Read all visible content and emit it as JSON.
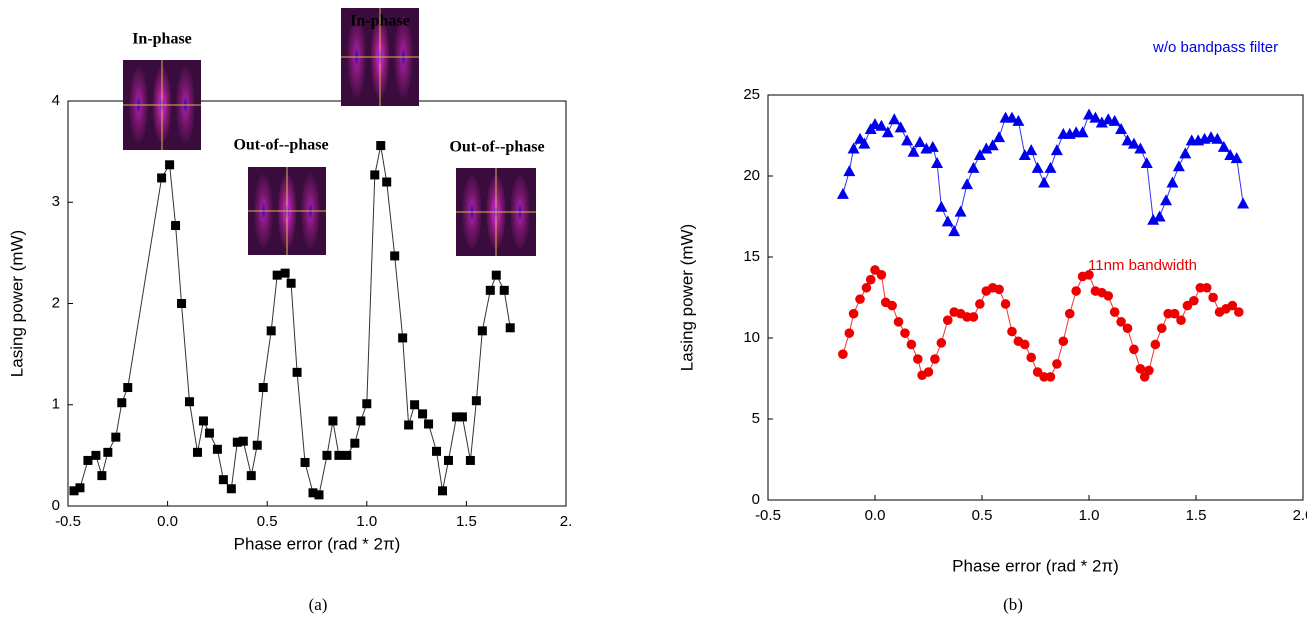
{
  "chart_data": [
    {
      "type": "scatter-line",
      "caption": "(a)",
      "xlabel": "Phase error (rad * 2π)",
      "ylabel": "Lasing power (mW)",
      "color": "#000000",
      "annotations": [
        "In-phase",
        "Out-of--phase",
        "In-phase",
        "Out-of--phase"
      ],
      "xlim": [
        -0.5,
        2
      ],
      "ylim": [
        0,
        4
      ],
      "xticks": [
        {
          "value": -0.5,
          "label": "-0.5"
        },
        {
          "value": 0,
          "label": "0.0"
        },
        {
          "value": 0.5,
          "label": "0.5"
        },
        {
          "value": 1,
          "label": "1.0"
        },
        {
          "value": 1.5,
          "label": "1.5"
        },
        {
          "value": 2,
          "label": "2."
        }
      ],
      "yticks": [
        0,
        1,
        2,
        3,
        4
      ],
      "x": [
        -0.47,
        -0.44,
        -0.4,
        -0.36,
        -0.33,
        -0.3,
        -0.26,
        -0.23,
        -0.2,
        -0.03,
        0.01,
        0.04,
        0.07,
        0.11,
        0.15,
        0.18,
        0.21,
        0.25,
        0.28,
        0.32,
        0.35,
        0.38,
        0.42,
        0.45,
        0.48,
        0.52,
        0.55,
        0.59,
        0.62,
        0.65,
        0.69,
        0.73,
        0.76,
        0.8,
        0.83,
        0.86,
        0.9,
        0.94,
        0.97,
        1.0,
        1.04,
        1.07,
        1.1,
        1.14,
        1.18,
        1.21,
        1.24,
        1.28,
        1.31,
        1.35,
        1.38,
        1.41,
        1.45,
        1.48,
        1.52,
        1.55,
        1.58,
        1.62,
        1.65,
        1.69,
        1.72
      ],
      "values": [
        0.15,
        0.18,
        0.45,
        0.5,
        0.3,
        0.53,
        0.68,
        1.02,
        1.17,
        3.24,
        3.37,
        2.77,
        2.0,
        1.03,
        0.53,
        0.84,
        0.72,
        0.56,
        0.26,
        0.17,
        0.63,
        0.64,
        0.3,
        0.6,
        1.17,
        1.73,
        2.28,
        2.3,
        2.2,
        1.32,
        0.43,
        0.13,
        0.11,
        0.5,
        0.84,
        0.5,
        0.5,
        0.62,
        0.84,
        1.01,
        3.27,
        3.56,
        3.2,
        2.47,
        1.66,
        0.8,
        1.0,
        0.91,
        0.81,
        0.54,
        0.15,
        0.45,
        0.88,
        0.88,
        0.45,
        1.04,
        1.73,
        2.13,
        2.28,
        2.13,
        1.76
      ]
    },
    {
      "type": "scatter-line",
      "caption": "(b)",
      "xlabel": "Phase error (rad * 2π)",
      "ylabel": "Lasing power (mW)",
      "xlim": [
        -0.5,
        2
      ],
      "ylim": [
        0,
        25
      ],
      "xticks": [
        {
          "value": -0.5,
          "label": "-0.5"
        },
        {
          "value": 0,
          "label": "0.0"
        },
        {
          "value": 0.5,
          "label": "0.5"
        },
        {
          "value": 1,
          "label": "1.0"
        },
        {
          "value": 1.5,
          "label": "1.5"
        },
        {
          "value": 2,
          "label": "2.0"
        }
      ],
      "yticks": [
        0,
        5,
        10,
        15,
        20,
        25
      ],
      "series": [
        {
          "name": "w/o bandpass filter",
          "color": "#0000ee",
          "marker": "triangle",
          "x": [
            -0.15,
            -0.12,
            -0.1,
            -0.07,
            -0.05,
            -0.02,
            0.0,
            0.03,
            0.06,
            0.09,
            0.12,
            0.15,
            0.18,
            0.21,
            0.24,
            0.27,
            0.29,
            0.31,
            0.34,
            0.37,
            0.4,
            0.43,
            0.46,
            0.49,
            0.52,
            0.55,
            0.58,
            0.61,
            0.64,
            0.67,
            0.7,
            0.73,
            0.76,
            0.79,
            0.82,
            0.85,
            0.88,
            0.91,
            0.94,
            0.97,
            1.0,
            1.03,
            1.06,
            1.09,
            1.12,
            1.15,
            1.18,
            1.21,
            1.24,
            1.27,
            1.3,
            1.33,
            1.36,
            1.39,
            1.42,
            1.45,
            1.48,
            1.51,
            1.54,
            1.57,
            1.6,
            1.63,
            1.66,
            1.69,
            1.72
          ],
          "values": [
            18.9,
            20.3,
            21.7,
            22.3,
            22.0,
            22.9,
            23.2,
            23.1,
            22.7,
            23.5,
            23.0,
            22.2,
            21.5,
            22.1,
            21.7,
            21.8,
            20.8,
            18.1,
            17.2,
            16.6,
            17.8,
            19.5,
            20.5,
            21.3,
            21.7,
            21.9,
            22.4,
            23.6,
            23.6,
            23.4,
            21.3,
            21.6,
            20.5,
            19.6,
            20.5,
            21.6,
            22.6,
            22.6,
            22.7,
            22.7,
            23.8,
            23.6,
            23.3,
            23.5,
            23.4,
            22.9,
            22.2,
            22.0,
            21.7,
            20.8,
            17.3,
            17.5,
            18.5,
            19.6,
            20.6,
            21.4,
            22.2,
            22.2,
            22.3,
            22.4,
            22.3,
            21.8,
            21.3,
            21.1,
            18.3
          ]
        },
        {
          "name": "11nm bandwidth",
          "color": "#ee0000",
          "marker": "circle",
          "x": [
            -0.15,
            -0.12,
            -0.1,
            -0.07,
            -0.04,
            -0.02,
            0.0,
            0.03,
            0.05,
            0.08,
            0.11,
            0.14,
            0.17,
            0.2,
            0.22,
            0.25,
            0.28,
            0.31,
            0.34,
            0.37,
            0.4,
            0.43,
            0.46,
            0.49,
            0.52,
            0.55,
            0.58,
            0.61,
            0.64,
            0.67,
            0.7,
            0.73,
            0.76,
            0.79,
            0.82,
            0.85,
            0.88,
            0.91,
            0.94,
            0.97,
            1.0,
            1.03,
            1.06,
            1.09,
            1.12,
            1.15,
            1.18,
            1.21,
            1.24,
            1.26,
            1.28,
            1.31,
            1.34,
            1.37,
            1.4,
            1.43,
            1.46,
            1.49,
            1.52,
            1.55,
            1.58,
            1.61,
            1.64,
            1.67,
            1.7
          ],
          "values": [
            9.0,
            10.3,
            11.5,
            12.4,
            13.1,
            13.6,
            14.2,
            13.9,
            12.2,
            12.0,
            11.0,
            10.3,
            9.6,
            8.7,
            7.7,
            7.9,
            8.7,
            9.7,
            11.1,
            11.6,
            11.5,
            11.3,
            11.3,
            12.1,
            12.9,
            13.1,
            13.0,
            12.1,
            10.4,
            9.8,
            9.6,
            8.8,
            7.9,
            7.6,
            7.6,
            8.4,
            9.8,
            11.5,
            12.9,
            13.8,
            13.9,
            12.9,
            12.8,
            12.6,
            11.6,
            11.0,
            10.6,
            9.3,
            8.1,
            7.6,
            8.0,
            9.6,
            10.6,
            11.5,
            11.5,
            11.1,
            12.0,
            12.3,
            13.1,
            13.1,
            12.5,
            11.6,
            11.8,
            12.0,
            11.6
          ]
        }
      ]
    }
  ]
}
